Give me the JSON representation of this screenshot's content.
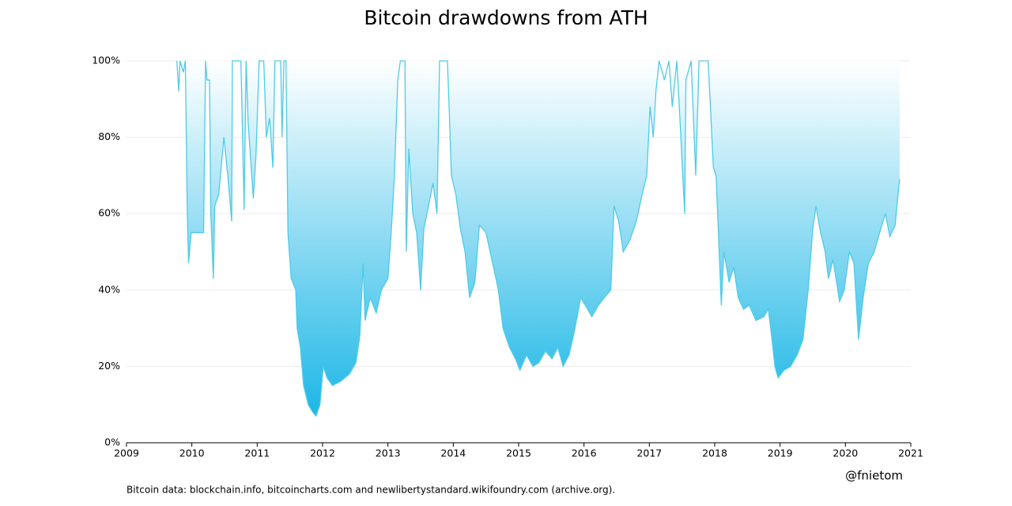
{
  "chart_data": {
    "type": "area",
    "title": "Bitcoin drawdowns from ATH",
    "footnote": "Bitcoin data: blockchain.info, bitcoincharts.com and newlibertystandard.wikifoundry.com (archive.org).",
    "watermark": "@fnietom",
    "color": "#4ecbe8",
    "fill_color": "#1ab6e6",
    "grid": true,
    "xlim": [
      2009,
      2021
    ],
    "xticks": [
      2009,
      2010,
      2011,
      2012,
      2013,
      2014,
      2015,
      2016,
      2017,
      2018,
      2019,
      2020,
      2021
    ],
    "ylim": [
      0,
      100
    ],
    "yticks": [
      {
        "value": 0,
        "label": "0%"
      },
      {
        "value": 20,
        "label": "20%"
      },
      {
        "value": 40,
        "label": "40%"
      },
      {
        "value": 60,
        "label": "60%"
      },
      {
        "value": 80,
        "label": "80%"
      },
      {
        "value": 100,
        "label": "100%"
      }
    ],
    "x": [
      2009.77,
      2009.8,
      2009.82,
      2009.87,
      2009.9,
      2009.93,
      2009.95,
      2009.99,
      2010.18,
      2010.21,
      2010.23,
      2010.27,
      2010.29,
      2010.33,
      2010.35,
      2010.41,
      2010.49,
      2010.55,
      2010.61,
      2010.62,
      2010.75,
      2010.8,
      2010.83,
      2010.86,
      2010.94,
      2010.98,
      2011.03,
      2011.1,
      2011.14,
      2011.19,
      2011.24,
      2011.27,
      2011.36,
      2011.38,
      2011.41,
      2011.44,
      2011.47,
      2011.52,
      2011.59,
      2011.61,
      2011.66,
      2011.71,
      2011.78,
      2011.85,
      2011.9,
      2011.96,
      2012.01,
      2012.07,
      2012.15,
      2012.27,
      2012.41,
      2012.51,
      2012.57,
      2012.62,
      2012.65,
      2012.73,
      2012.82,
      2012.9,
      2013.0,
      2013.05,
      2013.1,
      2013.15,
      2013.19,
      2013.26,
      2013.28,
      2013.32,
      2013.38,
      2013.44,
      2013.5,
      2013.55,
      2013.62,
      2013.69,
      2013.75,
      2013.79,
      2013.91,
      2013.94,
      2013.97,
      2014.04,
      2014.11,
      2014.18,
      2014.25,
      2014.33,
      2014.4,
      2014.5,
      2014.59,
      2014.69,
      2014.76,
      2014.86,
      2014.95,
      2015.02,
      2015.12,
      2015.22,
      2015.31,
      2015.41,
      2015.51,
      2015.6,
      2015.68,
      2015.77,
      2015.85,
      2015.95,
      2016.02,
      2016.12,
      2016.22,
      2016.31,
      2016.41,
      2016.46,
      2016.53,
      2016.6,
      2016.7,
      2016.8,
      2016.89,
      2016.96,
      2017.01,
      2017.06,
      2017.1,
      2017.15,
      2017.23,
      2017.3,
      2017.35,
      2017.42,
      2017.47,
      2017.54,
      2017.56,
      2017.64,
      2017.71,
      2017.76,
      2017.9,
      2017.98,
      2018.02,
      2018.05,
      2018.1,
      2018.14,
      2018.22,
      2018.29,
      2018.36,
      2018.44,
      2018.53,
      2018.63,
      2018.75,
      2018.82,
      2018.87,
      2018.92,
      2018.97,
      2019.06,
      2019.16,
      2019.26,
      2019.35,
      2019.43,
      2019.5,
      2019.55,
      2019.62,
      2019.69,
      2019.74,
      2019.81,
      2019.91,
      2019.98,
      2020.06,
      2020.13,
      2020.2,
      2020.27,
      2020.35,
      2020.44,
      2020.54,
      2020.61,
      2020.68,
      2020.76,
      2020.81,
      2020.83
    ],
    "values": [
      100,
      92,
      100,
      97,
      100,
      60,
      47,
      55,
      55,
      100,
      95,
      95,
      60,
      43,
      62,
      65,
      80,
      70,
      58,
      100,
      100,
      61,
      100,
      84,
      64,
      75,
      100,
      100,
      80,
      85,
      72,
      100,
      100,
      80,
      100,
      100,
      55,
      43,
      40,
      30,
      25,
      15,
      10,
      8,
      7,
      10,
      20,
      17,
      15,
      16,
      18,
      21,
      28,
      47,
      32,
      38,
      34,
      40,
      43,
      55,
      70,
      95,
      100,
      100,
      50,
      77,
      60,
      55,
      40,
      56,
      62,
      68,
      60,
      100,
      100,
      86,
      70,
      65,
      56,
      50,
      38,
      42,
      57,
      55,
      48,
      40,
      30,
      25,
      22,
      19,
      23,
      20,
      21,
      24,
      22,
      25,
      20,
      23,
      29,
      38,
      36,
      33,
      36,
      38,
      40,
      62,
      58,
      50,
      53,
      58,
      65,
      70,
      88,
      80,
      92,
      100,
      95,
      100,
      88,
      100,
      84,
      60,
      95,
      100,
      70,
      100,
      100,
      72,
      70,
      58,
      36,
      50,
      42,
      46,
      38,
      35,
      36,
      32,
      33,
      35,
      28,
      20,
      17,
      19,
      20,
      23,
      27,
      40,
      56,
      62,
      55,
      50,
      43,
      48,
      37,
      40,
      50,
      47,
      27,
      38,
      47,
      50,
      56,
      60,
      54,
      57,
      66,
      69
    ]
  }
}
